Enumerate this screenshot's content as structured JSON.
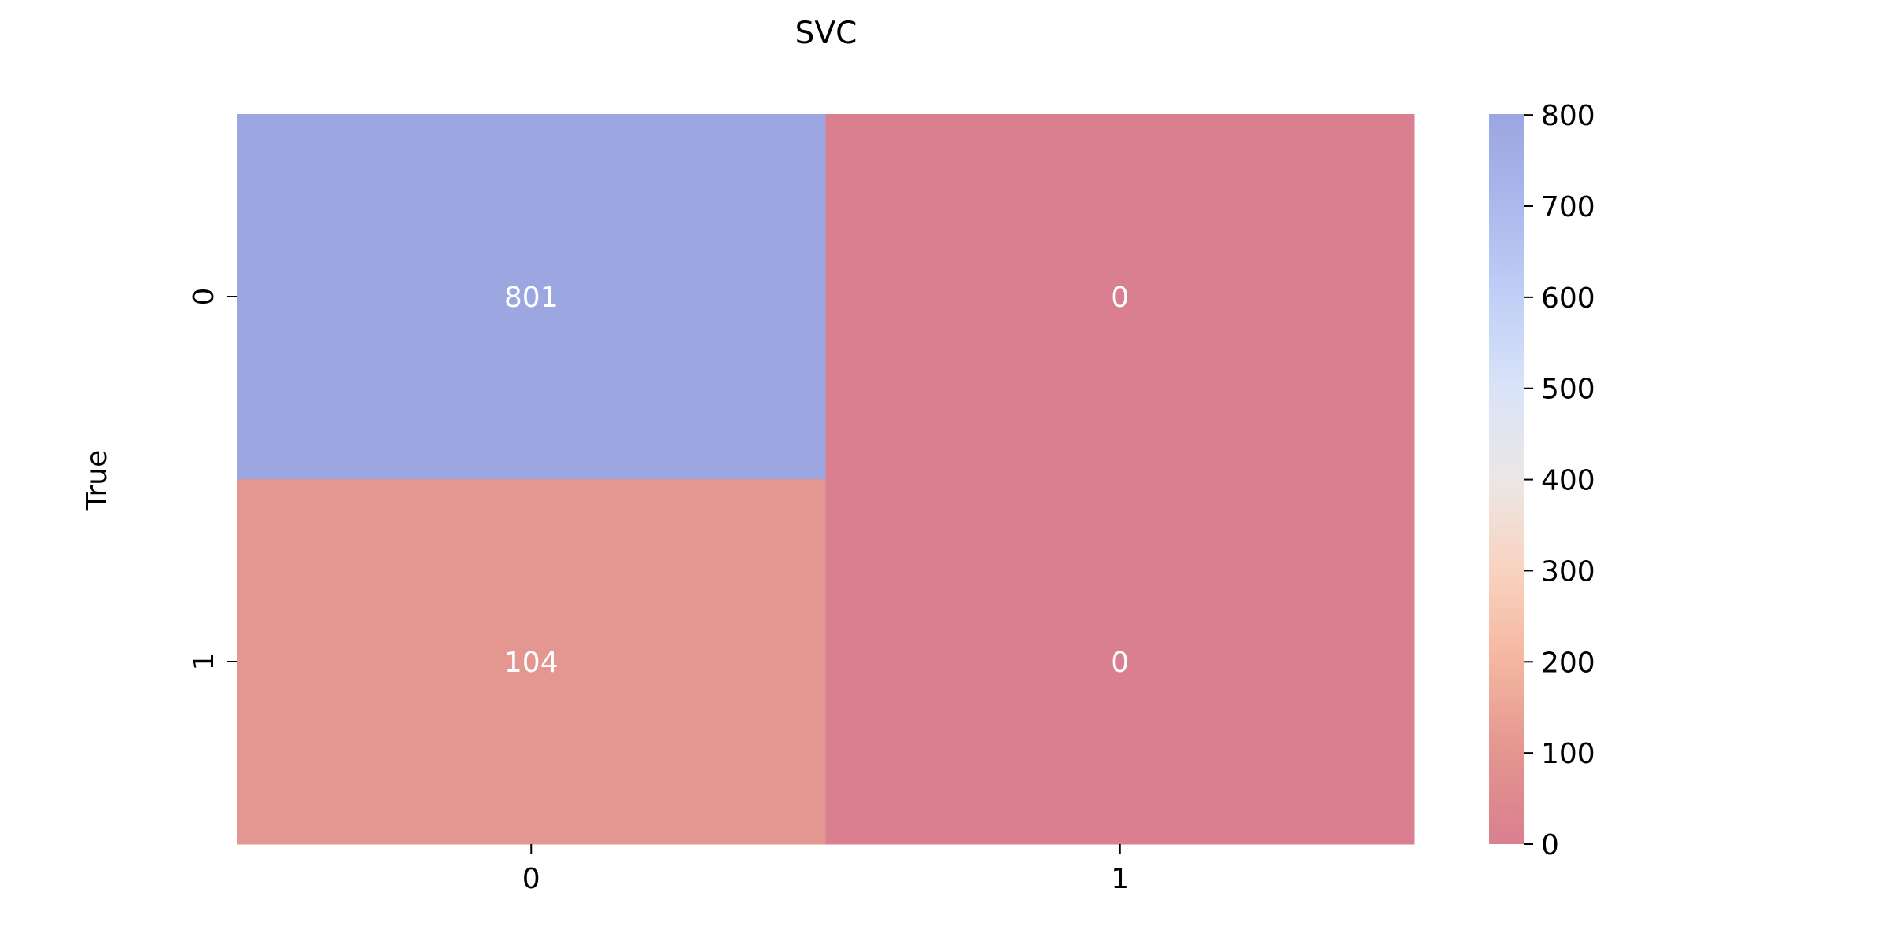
{
  "chart_data": {
    "type": "heatmap",
    "title": "SVC",
    "ylabel": "True",
    "xlabel": "",
    "x_categories": [
      "0",
      "1"
    ],
    "y_categories": [
      "0",
      "1"
    ],
    "values": [
      [
        801,
        0
      ],
      [
        104,
        0
      ]
    ],
    "cell_labels": [
      [
        "801",
        "0"
      ],
      [
        "104",
        "0"
      ]
    ],
    "colorbar": {
      "ticks": [
        0,
        100,
        200,
        300,
        400,
        500,
        600,
        700,
        800
      ],
      "range": [
        0,
        801
      ]
    },
    "colormap": [
      "#d97f8f",
      "#e3958f",
      "#f4b6a0",
      "#f9d3c0",
      "#ebe7e5",
      "#d9e3f8",
      "#c0cff6",
      "#aab8ec",
      "#9ca6e1"
    ],
    "annotation_color": "#ffffff"
  }
}
